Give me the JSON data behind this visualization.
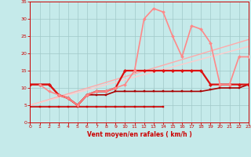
{
  "bg_color": "#c5eaea",
  "grid_color": "#a0c8c8",
  "xlabel": "Vent moyen/en rafales ( km/h )",
  "xlabel_color": "#cc0000",
  "tick_color": "#cc0000",
  "xlim": [
    0,
    23
  ],
  "ylim": [
    0,
    35
  ],
  "yticks": [
    0,
    5,
    10,
    15,
    20,
    25,
    30,
    35
  ],
  "xticks": [
    0,
    1,
    2,
    3,
    4,
    5,
    6,
    7,
    8,
    9,
    10,
    11,
    12,
    13,
    14,
    15,
    16,
    17,
    18,
    19,
    20,
    21,
    22,
    23
  ],
  "lines": [
    {
      "x": [
        0,
        1,
        2,
        3,
        4,
        5,
        6,
        7,
        8,
        9,
        10,
        11,
        12,
        13,
        14
      ],
      "y": [
        4.5,
        4.5,
        4.5,
        4.5,
        4.5,
        4.5,
        4.5,
        4.5,
        4.5,
        4.5,
        4.5,
        4.5,
        4.5,
        4.5,
        4.5
      ],
      "color": "#cc0000",
      "lw": 1.2,
      "marker": "s",
      "ms": 2.0
    },
    {
      "x": [
        0,
        1,
        2,
        3,
        4,
        5,
        6,
        7,
        8,
        9,
        10,
        11,
        12,
        13,
        14,
        15,
        16,
        17,
        18,
        19,
        20,
        21,
        22,
        23
      ],
      "y": [
        11,
        11,
        11,
        8,
        7,
        5,
        8,
        8,
        8,
        9,
        9,
        9,
        9,
        9,
        9,
        9,
        9,
        9,
        9,
        9.5,
        10,
        10,
        10,
        11
      ],
      "color": "#aa0000",
      "lw": 1.2,
      "marker": "s",
      "ms": 2.0
    },
    {
      "x": [
        0,
        1,
        2,
        3,
        4,
        5,
        6,
        7,
        8,
        9,
        10,
        11,
        12,
        13,
        14,
        15,
        16,
        17,
        18,
        19,
        20,
        21,
        22,
        23
      ],
      "y": [
        11,
        11,
        11,
        8,
        7,
        5,
        8,
        9,
        9,
        10,
        15,
        15,
        15,
        15,
        15,
        15,
        15,
        15,
        15,
        11,
        11,
        11,
        11,
        11
      ],
      "color": "#dd1111",
      "lw": 1.6,
      "marker": "D",
      "ms": 2.2
    },
    {
      "x": [
        1,
        2,
        3,
        4,
        5,
        6,
        7,
        8,
        9,
        10,
        11,
        12,
        13,
        14,
        15,
        16,
        17,
        18,
        19,
        20,
        21,
        22,
        23
      ],
      "y": [
        11,
        9,
        8,
        7,
        5,
        8,
        9,
        9,
        10,
        11,
        15,
        30,
        33,
        32,
        25,
        19,
        28,
        27,
        23,
        11,
        11,
        19,
        19
      ],
      "color": "#ff8888",
      "lw": 1.2,
      "marker": "D",
      "ms": 2.0
    },
    {
      "x": [
        0,
        23
      ],
      "y": [
        5,
        24
      ],
      "color": "#ffaaaa",
      "lw": 1.0,
      "marker": null,
      "ms": 0
    },
    {
      "x": [
        0,
        23
      ],
      "y": [
        5,
        22
      ],
      "color": "#ffcccc",
      "lw": 1.0,
      "marker": null,
      "ms": 0
    }
  ]
}
